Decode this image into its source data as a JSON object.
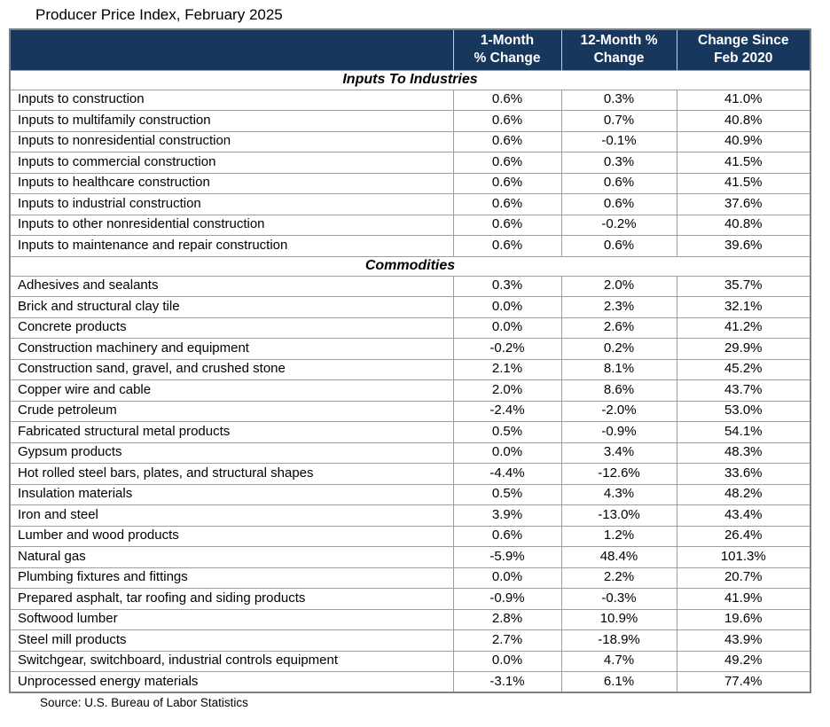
{
  "title": "Producer Price Index, February 2025",
  "source": "Source: U.S. Bureau of Labor Statistics",
  "colors": {
    "header_bg": "#17375D",
    "header_text": "#FFFFFF"
  },
  "table": {
    "columns": {
      "col1": "",
      "col2": "1-Month\n% Change",
      "col3": "12-Month %\nChange",
      "col4": "Change Since\nFeb 2020"
    },
    "sections": [
      {
        "name": "Inputs To Industries",
        "rows": [
          {
            "label": "Inputs to construction",
            "m1": "0.6%",
            "m12": "0.3%",
            "since": "41.0%"
          },
          {
            "label": "Inputs to multifamily construction",
            "m1": "0.6%",
            "m12": "0.7%",
            "since": "40.8%"
          },
          {
            "label": "Inputs to nonresidential construction",
            "m1": "0.6%",
            "m12": "-0.1%",
            "since": "40.9%"
          },
          {
            "label": "Inputs to commercial construction",
            "m1": "0.6%",
            "m12": "0.3%",
            "since": "41.5%"
          },
          {
            "label": "Inputs to healthcare construction",
            "m1": "0.6%",
            "m12": "0.6%",
            "since": "41.5%"
          },
          {
            "label": "Inputs to industrial construction",
            "m1": "0.6%",
            "m12": "0.6%",
            "since": "37.6%"
          },
          {
            "label": "Inputs to other nonresidential construction",
            "m1": "0.6%",
            "m12": "-0.2%",
            "since": "40.8%"
          },
          {
            "label": "Inputs to maintenance and repair construction",
            "m1": "0.6%",
            "m12": "0.6%",
            "since": "39.6%"
          }
        ]
      },
      {
        "name": "Commodities",
        "rows": [
          {
            "label": "Adhesives and sealants",
            "m1": "0.3%",
            "m12": "2.0%",
            "since": "35.7%"
          },
          {
            "label": "Brick and structural clay tile",
            "m1": "0.0%",
            "m12": "2.3%",
            "since": "32.1%"
          },
          {
            "label": "Concrete products",
            "m1": "0.0%",
            "m12": "2.6%",
            "since": "41.2%"
          },
          {
            "label": "Construction machinery and equipment",
            "m1": "-0.2%",
            "m12": "0.2%",
            "since": "29.9%"
          },
          {
            "label": "Construction sand, gravel, and crushed stone",
            "m1": "2.1%",
            "m12": "8.1%",
            "since": "45.2%"
          },
          {
            "label": "Copper wire and cable",
            "m1": "2.0%",
            "m12": "8.6%",
            "since": "43.7%"
          },
          {
            "label": "Crude petroleum",
            "m1": "-2.4%",
            "m12": "-2.0%",
            "since": "53.0%"
          },
          {
            "label": "Fabricated structural metal products",
            "m1": "0.5%",
            "m12": "-0.9%",
            "since": "54.1%"
          },
          {
            "label": "Gypsum products",
            "m1": "0.0%",
            "m12": "3.4%",
            "since": "48.3%"
          },
          {
            "label": "Hot rolled steel bars, plates, and structural shapes",
            "m1": "-4.4%",
            "m12": "-12.6%",
            "since": "33.6%"
          },
          {
            "label": "Insulation materials",
            "m1": "0.5%",
            "m12": "4.3%",
            "since": "48.2%"
          },
          {
            "label": "Iron and steel",
            "m1": "3.9%",
            "m12": "-13.0%",
            "since": "43.4%"
          },
          {
            "label": "Lumber and wood products",
            "m1": "0.6%",
            "m12": "1.2%",
            "since": "26.4%"
          },
          {
            "label": "Natural gas",
            "m1": "-5.9%",
            "m12": "48.4%",
            "since": "101.3%"
          },
          {
            "label": "Plumbing fixtures and fittings",
            "m1": "0.0%",
            "m12": "2.2%",
            "since": "20.7%"
          },
          {
            "label": "Prepared asphalt, tar roofing and siding products",
            "m1": "-0.9%",
            "m12": "-0.3%",
            "since": "41.9%"
          },
          {
            "label": "Softwood lumber",
            "m1": "2.8%",
            "m12": "10.9%",
            "since": "19.6%"
          },
          {
            "label": "Steel mill products",
            "m1": "2.7%",
            "m12": "-18.9%",
            "since": "43.9%"
          },
          {
            "label": "Switchgear, switchboard, industrial controls equipment",
            "m1": "0.0%",
            "m12": "4.7%",
            "since": "49.2%"
          },
          {
            "label": "Unprocessed energy materials",
            "m1": "-3.1%",
            "m12": "6.1%",
            "since": "77.4%"
          }
        ]
      }
    ]
  }
}
